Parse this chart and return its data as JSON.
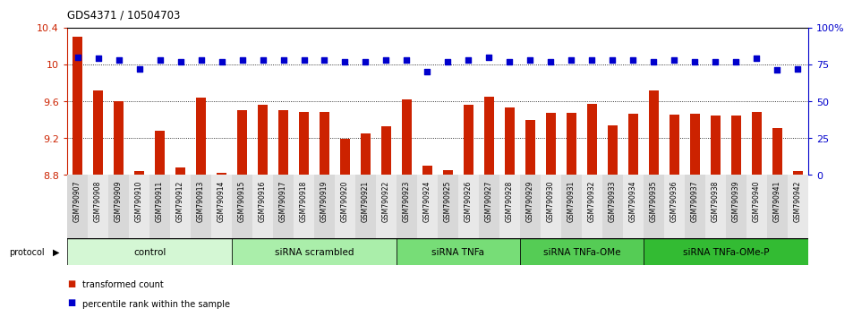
{
  "title": "GDS4371 / 10504703",
  "samples": [
    "GSM790907",
    "GSM790908",
    "GSM790909",
    "GSM790910",
    "GSM790911",
    "GSM790912",
    "GSM790913",
    "GSM790914",
    "GSM790915",
    "GSM790916",
    "GSM790917",
    "GSM790918",
    "GSM790919",
    "GSM790920",
    "GSM790921",
    "GSM790922",
    "GSM790923",
    "GSM790924",
    "GSM790925",
    "GSM790926",
    "GSM790927",
    "GSM790928",
    "GSM790929",
    "GSM790930",
    "GSM790931",
    "GSM790932",
    "GSM790933",
    "GSM790934",
    "GSM790935",
    "GSM790936",
    "GSM790937",
    "GSM790938",
    "GSM790939",
    "GSM790940",
    "GSM790941",
    "GSM790942"
  ],
  "bar_values": [
    10.3,
    9.72,
    9.6,
    8.84,
    9.28,
    8.88,
    9.64,
    8.82,
    9.5,
    9.56,
    9.5,
    9.48,
    9.48,
    9.19,
    9.25,
    9.33,
    9.62,
    8.9,
    8.85,
    9.56,
    9.65,
    9.53,
    9.4,
    9.47,
    9.47,
    9.57,
    9.34,
    9.46,
    9.72,
    9.45,
    9.46,
    9.44,
    9.44,
    9.48,
    9.31,
    8.84
  ],
  "percentile_values": [
    80,
    79,
    78,
    72,
    78,
    77,
    78,
    77,
    78,
    78,
    78,
    78,
    78,
    77,
    77,
    78,
    78,
    70,
    77,
    78,
    80,
    77,
    78,
    77,
    78,
    78,
    78,
    78,
    77,
    78,
    77,
    77,
    77,
    79,
    71,
    72
  ],
  "groups": [
    {
      "label": "control",
      "start": 0,
      "end": 8,
      "color": "#d4f7d4"
    },
    {
      "label": "siRNA scrambled",
      "start": 8,
      "end": 16,
      "color": "#aaeeaa"
    },
    {
      "label": "siRNA TNFa",
      "start": 16,
      "end": 22,
      "color": "#77dd77"
    },
    {
      "label": "siRNA TNFa-OMe",
      "start": 22,
      "end": 28,
      "color": "#55cc55"
    },
    {
      "label": "siRNA TNFa-OMe-P",
      "start": 28,
      "end": 36,
      "color": "#33bb33"
    }
  ],
  "ylim_left": [
    8.8,
    10.4
  ],
  "ylim_right": [
    0,
    100
  ],
  "bar_color": "#cc2200",
  "dot_color": "#0000cc",
  "background_color": "#ffffff",
  "tick_color_left": "#cc2200",
  "tick_color_right": "#0000cc",
  "yticks_left": [
    8.8,
    9.2,
    9.6,
    10.0,
    10.4
  ],
  "ytick_labels_left": [
    "8.8",
    "9.2",
    "9.6",
    "10",
    "10.4"
  ],
  "yticks_right": [
    0,
    25,
    50,
    75,
    100
  ],
  "ytick_labels_right": [
    "0",
    "25",
    "50",
    "75",
    "100%"
  ],
  "hgrid_vals": [
    9.2,
    9.6,
    10.0
  ]
}
